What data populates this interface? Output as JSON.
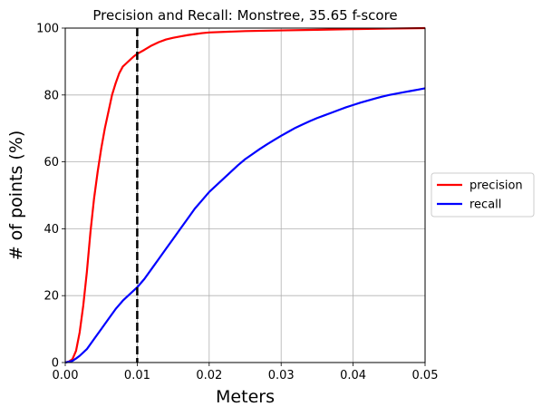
{
  "chart_data": {
    "type": "line",
    "title": "Precision and Recall: Monstree, 35.65 f-score",
    "xlabel": "Meters",
    "ylabel": "# of points (%)",
    "xlim": [
      0.0,
      0.05
    ],
    "ylim": [
      0,
      100
    ],
    "xticks": [
      "0.00",
      "0.01",
      "0.02",
      "0.03",
      "0.04",
      "0.05"
    ],
    "yticks": [
      "0",
      "20",
      "40",
      "60",
      "80",
      "100"
    ],
    "grid": true,
    "legend_position": "center-right, outside plot",
    "threshold": {
      "x": 0.01,
      "style": "dashed",
      "color": "#000000"
    },
    "series": [
      {
        "name": "precision",
        "color": "#ff0000",
        "points": [
          [
            0.0,
            0
          ],
          [
            0.0005,
            0.3
          ],
          [
            0.001,
            1
          ],
          [
            0.0015,
            3.5
          ],
          [
            0.002,
            9
          ],
          [
            0.0025,
            17
          ],
          [
            0.003,
            27
          ],
          [
            0.0035,
            39
          ],
          [
            0.004,
            49
          ],
          [
            0.0045,
            57
          ],
          [
            0.005,
            64
          ],
          [
            0.0055,
            70
          ],
          [
            0.006,
            75
          ],
          [
            0.0065,
            80
          ],
          [
            0.007,
            83.5
          ],
          [
            0.0075,
            86.5
          ],
          [
            0.008,
            88.5
          ],
          [
            0.0085,
            89.5
          ],
          [
            0.009,
            90.5
          ],
          [
            0.0095,
            91.5
          ],
          [
            0.01,
            92.3
          ],
          [
            0.011,
            93.5
          ],
          [
            0.012,
            94.8
          ],
          [
            0.013,
            95.8
          ],
          [
            0.014,
            96.6
          ],
          [
            0.015,
            97.1
          ],
          [
            0.016,
            97.5
          ],
          [
            0.017,
            97.9
          ],
          [
            0.018,
            98.2
          ],
          [
            0.019,
            98.5
          ],
          [
            0.02,
            98.7
          ],
          [
            0.025,
            99.1
          ],
          [
            0.03,
            99.3
          ],
          [
            0.035,
            99.5
          ],
          [
            0.04,
            99.7
          ],
          [
            0.045,
            99.85
          ],
          [
            0.05,
            100
          ]
        ]
      },
      {
        "name": "recall",
        "color": "#0000ff",
        "points": [
          [
            0.0,
            0
          ],
          [
            0.001,
            0.5
          ],
          [
            0.0015,
            1.2
          ],
          [
            0.002,
            2
          ],
          [
            0.003,
            4
          ],
          [
            0.004,
            7
          ],
          [
            0.005,
            10
          ],
          [
            0.006,
            13
          ],
          [
            0.007,
            16
          ],
          [
            0.008,
            18.5
          ],
          [
            0.009,
            20.5
          ],
          [
            0.01,
            22.5
          ],
          [
            0.011,
            25
          ],
          [
            0.012,
            28
          ],
          [
            0.013,
            31
          ],
          [
            0.014,
            34
          ],
          [
            0.015,
            37
          ],
          [
            0.016,
            40
          ],
          [
            0.017,
            43
          ],
          [
            0.018,
            46
          ],
          [
            0.019,
            48.5
          ],
          [
            0.02,
            51
          ],
          [
            0.021,
            53
          ],
          [
            0.022,
            55
          ],
          [
            0.023,
            57
          ],
          [
            0.024,
            59
          ],
          [
            0.025,
            60.8
          ],
          [
            0.026,
            62.3
          ],
          [
            0.027,
            63.8
          ],
          [
            0.028,
            65.2
          ],
          [
            0.029,
            66.5
          ],
          [
            0.03,
            67.8
          ],
          [
            0.031,
            69
          ],
          [
            0.032,
            70.2
          ],
          [
            0.033,
            71.2
          ],
          [
            0.034,
            72.2
          ],
          [
            0.035,
            73.1
          ],
          [
            0.036,
            73.9
          ],
          [
            0.037,
            74.7
          ],
          [
            0.038,
            75.5
          ],
          [
            0.039,
            76.3
          ],
          [
            0.04,
            77
          ],
          [
            0.041,
            77.7
          ],
          [
            0.042,
            78.3
          ],
          [
            0.043,
            78.9
          ],
          [
            0.044,
            79.5
          ],
          [
            0.045,
            80
          ],
          [
            0.046,
            80.4
          ],
          [
            0.047,
            80.8
          ],
          [
            0.048,
            81.2
          ],
          [
            0.049,
            81.6
          ],
          [
            0.05,
            82
          ]
        ]
      }
    ]
  }
}
